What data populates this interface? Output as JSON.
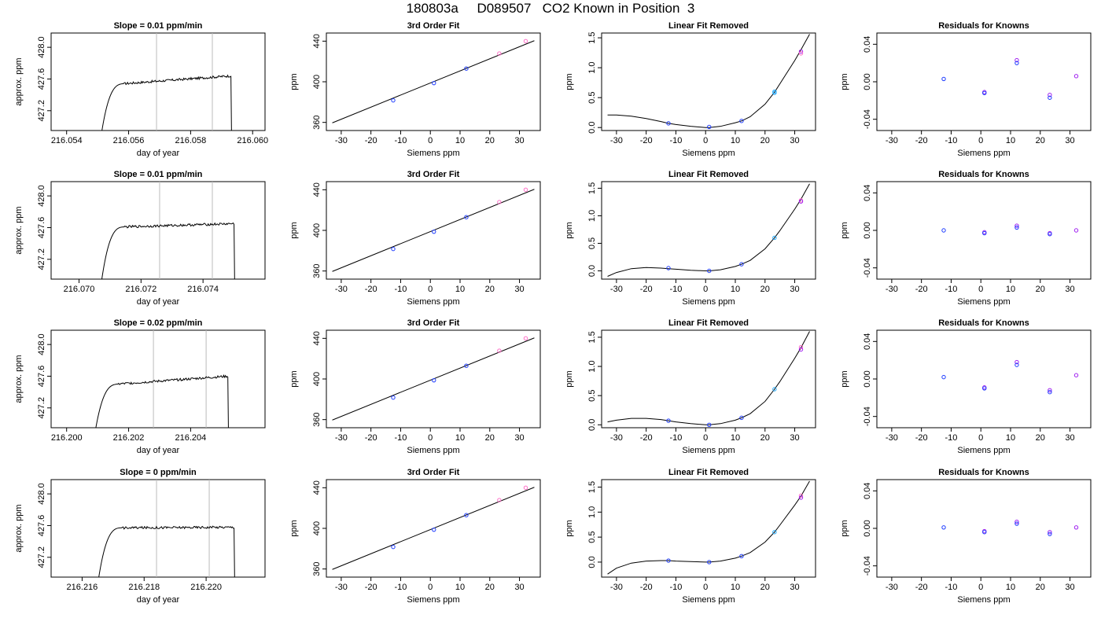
{
  "header": {
    "title": "180803a     D089507   CO2 Known in Position  3"
  },
  "labels": {
    "fit_title": "3rd Order Fit",
    "lin_title": "Linear Fit Removed",
    "res_title": "Residuals for Knowns",
    "siemens_xlabel": "Siemens ppm",
    "ppm_ylabel": "ppm",
    "time_xlabel": "day of year",
    "time_ylabel": "approx. ppm"
  },
  "colors": {
    "line": "#000000",
    "point_blue": "#1f3dff",
    "point_violet": "#a020f0",
    "point_pink": "#ff6ec7",
    "point_cyan": "#22aaff",
    "marker_gray": "#bbbbbb"
  },
  "chart_data": [
    {
      "row": 1,
      "type": "line",
      "title": "Slope =  0.01  ppm/min",
      "xlabel": "day of year",
      "ylabel": "approx. ppm",
      "xlim": [
        216.0535,
        216.0604
      ],
      "ylim": [
        426.95,
        428.18
      ],
      "xticks": [
        "216.054",
        "216.056",
        "216.058",
        "216.060"
      ],
      "xtick_values": [
        216.054,
        216.056,
        216.058,
        216.06
      ],
      "yticks": [
        "427.2",
        "427.6",
        "428.0"
      ],
      "ytick_values": [
        427.2,
        427.6,
        428.0
      ],
      "markers": [
        216.0569,
        216.0587
      ],
      "trace": {
        "x_start": 216.0551,
        "x_end": 216.0593,
        "level_start": 427.52,
        "level_end": 427.64
      }
    },
    {
      "row": 1,
      "type": "scatter",
      "title": "3rd Order Fit",
      "xlabel": "Siemens ppm",
      "ylabel": "ppm",
      "xlim": [
        -35,
        37
      ],
      "ylim": [
        352,
        448
      ],
      "xticks": [
        "-30",
        "-20",
        "-10",
        "0",
        "10",
        "20",
        "30"
      ],
      "xtick_values": [
        -30,
        -20,
        -10,
        0,
        10,
        20,
        30
      ],
      "yticks": [
        "360",
        "400",
        "440"
      ],
      "ytick_values": [
        360,
        400,
        440
      ],
      "line": {
        "x0": -33,
        "x1": 35,
        "y_at_zero": 398.8,
        "slope": 1.19
      },
      "points": [
        {
          "x": -12.5,
          "y": 381.7
        },
        {
          "x": 1.2,
          "y": 398.7
        },
        {
          "x": 12.1,
          "y": 413.0
        },
        {
          "x": 23.2,
          "y": 427.8
        },
        {
          "x": 32.1,
          "y": 440.0
        }
      ]
    },
    {
      "row": 1,
      "type": "scatter",
      "title": "Linear Fit Removed",
      "xlabel": "Siemens ppm",
      "ylabel": "ppm",
      "xlim": [
        -35,
        37
      ],
      "ylim": [
        -0.05,
        1.58
      ],
      "xticks": [
        "-30",
        "-20",
        "-10",
        "0",
        "10",
        "20",
        "30"
      ],
      "xtick_values": [
        -30,
        -20,
        -10,
        0,
        10,
        20,
        30
      ],
      "yticks": [
        "0.0",
        "0.5",
        "1.0",
        "1.5"
      ],
      "ytick_values": [
        0.0,
        0.5,
        1.0,
        1.5
      ],
      "curve": {
        "x": [
          -33,
          -30,
          -25,
          -20,
          -15,
          -12.5,
          -10,
          -5,
          0,
          1.2,
          5,
          10,
          12.1,
          15,
          20,
          23.2,
          25,
          30,
          32.1,
          35
        ],
        "y": [
          0.21,
          0.21,
          0.19,
          0.15,
          0.1,
          0.07,
          0.05,
          0.02,
          0.0,
          0.0,
          0.02,
          0.08,
          0.11,
          0.18,
          0.39,
          0.59,
          0.73,
          1.12,
          1.3,
          1.56
        ]
      },
      "points": [
        {
          "x": -12.5,
          "y": 0.07
        },
        {
          "x": 1.2,
          "y": 0.01
        },
        {
          "x": 12.1,
          "y": 0.11
        },
        {
          "x": 23.2,
          "y": 0.6
        },
        {
          "x": 23.2,
          "y": 0.58
        },
        {
          "x": 32.1,
          "y": 1.27
        },
        {
          "x": 32.1,
          "y": 1.24
        }
      ]
    },
    {
      "row": 1,
      "type": "scatter",
      "title": "Residuals for Knowns",
      "xlabel": "Siemens ppm",
      "ylabel": "ppm",
      "xlim": [
        -35,
        37
      ],
      "ylim": [
        -0.052,
        0.052
      ],
      "xticks": [
        "-30",
        "-20",
        "-10",
        "0",
        "10",
        "20",
        "30"
      ],
      "xtick_values": [
        -30,
        -20,
        -10,
        0,
        10,
        20,
        30
      ],
      "yticks": [
        "-0.04",
        "0.00",
        "0.04"
      ],
      "ytick_values": [
        -0.04,
        0.0,
        0.04
      ],
      "points": [
        {
          "x": -12.5,
          "y": 0.003
        },
        {
          "x": 1.2,
          "y": -0.011
        },
        {
          "x": 1.2,
          "y": -0.012
        },
        {
          "x": 12.1,
          "y": 0.023
        },
        {
          "x": 12.1,
          "y": 0.02
        },
        {
          "x": 23.2,
          "y": -0.014
        },
        {
          "x": 23.2,
          "y": -0.017
        },
        {
          "x": 32.1,
          "y": 0.006
        }
      ]
    },
    {
      "row": 2,
      "type": "line",
      "title": "Slope =  0.01  ppm/min",
      "xlabel": "day of year",
      "ylabel": "approx. ppm",
      "xlim": [
        216.0691,
        216.076
      ],
      "ylim": [
        426.95,
        428.18
      ],
      "xticks": [
        "216.070",
        "216.072",
        "216.074"
      ],
      "xtick_values": [
        216.07,
        216.072,
        216.074
      ],
      "yticks": [
        "427.2",
        "427.6",
        "428.0"
      ],
      "ytick_values": [
        427.2,
        427.6,
        428.0
      ],
      "markers": [
        216.0726,
        216.0743
      ],
      "trace": {
        "x_start": 216.0707,
        "x_end": 216.075,
        "level_start": 427.6,
        "level_end": 427.65
      }
    },
    {
      "row": 2,
      "type": "scatter",
      "title": "3rd Order Fit",
      "xlabel": "Siemens ppm",
      "ylabel": "ppm",
      "xlim": [
        -35,
        37
      ],
      "ylim": [
        352,
        448
      ],
      "xticks": [
        "-30",
        "-20",
        "-10",
        "0",
        "10",
        "20",
        "30"
      ],
      "xtick_values": [
        -30,
        -20,
        -10,
        0,
        10,
        20,
        30
      ],
      "yticks": [
        "360",
        "400",
        "440"
      ],
      "ytick_values": [
        360,
        400,
        440
      ],
      "line": {
        "x0": -33,
        "x1": 35,
        "y_at_zero": 398.8,
        "slope": 1.19
      },
      "points": [
        {
          "x": -12.5,
          "y": 381.7
        },
        {
          "x": 1.2,
          "y": 398.7
        },
        {
          "x": 12.1,
          "y": 413.0
        },
        {
          "x": 23.2,
          "y": 427.8
        },
        {
          "x": 32.1,
          "y": 440.0
        }
      ]
    },
    {
      "row": 2,
      "type": "scatter",
      "title": "Linear Fit Removed",
      "xlabel": "Siemens ppm",
      "ylabel": "ppm",
      "xlim": [
        -35,
        37
      ],
      "ylim": [
        -0.15,
        1.62
      ],
      "xticks": [
        "-30",
        "-20",
        "-10",
        "0",
        "10",
        "20",
        "30"
      ],
      "xtick_values": [
        -30,
        -20,
        -10,
        0,
        10,
        20,
        30
      ],
      "yticks": [
        "0.0",
        "0.5",
        "1.0",
        "1.5"
      ],
      "ytick_values": [
        0.0,
        0.5,
        1.0,
        1.5
      ],
      "curve": {
        "x": [
          -33,
          -30,
          -25,
          -20,
          -15,
          -12.5,
          -10,
          -5,
          0,
          1.2,
          5,
          10,
          12.1,
          15,
          20,
          23.2,
          25,
          30,
          32.1,
          35
        ],
        "y": [
          -0.1,
          -0.03,
          0.04,
          0.06,
          0.05,
          0.04,
          0.03,
          0.01,
          0.0,
          0.0,
          0.02,
          0.08,
          0.12,
          0.19,
          0.4,
          0.6,
          0.73,
          1.12,
          1.3,
          1.58
        ]
      },
      "points": [
        {
          "x": -12.5,
          "y": 0.05
        },
        {
          "x": 1.2,
          "y": 0.0
        },
        {
          "x": 12.1,
          "y": 0.12
        },
        {
          "x": 23.2,
          "y": 0.6
        },
        {
          "x": 32.1,
          "y": 1.28
        },
        {
          "x": 32.1,
          "y": 1.26
        }
      ]
    },
    {
      "row": 2,
      "type": "scatter",
      "title": "Residuals for Knowns",
      "xlabel": "Siemens ppm",
      "ylabel": "ppm",
      "xlim": [
        -35,
        37
      ],
      "ylim": [
        -0.052,
        0.052
      ],
      "xticks": [
        "-30",
        "-20",
        "-10",
        "0",
        "10",
        "20",
        "30"
      ],
      "xtick_values": [
        -30,
        -20,
        -10,
        0,
        10,
        20,
        30
      ],
      "yticks": [
        "-0.04",
        "0.00",
        "0.04"
      ],
      "ytick_values": [
        -0.04,
        0.0,
        0.04
      ],
      "points": [
        {
          "x": -12.5,
          "y": 0.0
        },
        {
          "x": 1.2,
          "y": -0.002
        },
        {
          "x": 1.2,
          "y": -0.003
        },
        {
          "x": 12.1,
          "y": 0.005
        },
        {
          "x": 12.1,
          "y": 0.003
        },
        {
          "x": 23.2,
          "y": -0.003
        },
        {
          "x": 23.2,
          "y": -0.004
        },
        {
          "x": 32.1,
          "y": 0.0
        }
      ]
    },
    {
      "row": 3,
      "type": "line",
      "title": "Slope =  0.02  ppm/min",
      "xlabel": "day of year",
      "ylabel": "approx. ppm",
      "xlim": [
        216.1995,
        216.2064
      ],
      "ylim": [
        426.95,
        428.18
      ],
      "xticks": [
        "216.200",
        "216.202",
        "216.204"
      ],
      "xtick_values": [
        216.2,
        216.202,
        216.204
      ],
      "yticks": [
        "427.2",
        "427.6",
        "428.0"
      ],
      "ytick_values": [
        427.2,
        427.6,
        428.0
      ],
      "markers": [
        216.2028,
        216.2045
      ],
      "trace": {
        "x_start": 216.2009,
        "x_end": 216.2052,
        "level_start": 427.48,
        "level_end": 427.6
      }
    },
    {
      "row": 3,
      "type": "scatter",
      "title": "3rd Order Fit",
      "xlabel": "Siemens ppm",
      "ylabel": "ppm",
      "xlim": [
        -35,
        37
      ],
      "ylim": [
        352,
        448
      ],
      "xticks": [
        "-30",
        "-20",
        "-10",
        "0",
        "10",
        "20",
        "30"
      ],
      "xtick_values": [
        -30,
        -20,
        -10,
        0,
        10,
        20,
        30
      ],
      "yticks": [
        "360",
        "400",
        "440"
      ],
      "ytick_values": [
        360,
        400,
        440
      ],
      "line": {
        "x0": -33,
        "x1": 35,
        "y_at_zero": 398.8,
        "slope": 1.19
      },
      "points": [
        {
          "x": -12.5,
          "y": 381.7
        },
        {
          "x": 1.2,
          "y": 398.7
        },
        {
          "x": 12.1,
          "y": 413.0
        },
        {
          "x": 23.2,
          "y": 427.8
        },
        {
          "x": 32.1,
          "y": 440.0
        }
      ]
    },
    {
      "row": 3,
      "type": "scatter",
      "title": "Linear Fit Removed",
      "xlabel": "Siemens ppm",
      "ylabel": "ppm",
      "xlim": [
        -35,
        37
      ],
      "ylim": [
        -0.05,
        1.62
      ],
      "xticks": [
        "-30",
        "-20",
        "-10",
        "0",
        "10",
        "20",
        "30"
      ],
      "xtick_values": [
        -30,
        -20,
        -10,
        0,
        10,
        20,
        30
      ],
      "yticks": [
        "0.0",
        "0.5",
        "1.0",
        "1.5"
      ],
      "ytick_values": [
        0.0,
        0.5,
        1.0,
        1.5
      ],
      "curve": {
        "x": [
          -33,
          -30,
          -25,
          -20,
          -15,
          -12.5,
          -10,
          -5,
          0,
          1.2,
          5,
          10,
          12.1,
          15,
          20,
          23.2,
          25,
          30,
          32.1,
          35
        ],
        "y": [
          0.05,
          0.08,
          0.11,
          0.11,
          0.09,
          0.07,
          0.05,
          0.02,
          0.0,
          0.0,
          0.02,
          0.08,
          0.12,
          0.19,
          0.4,
          0.61,
          0.74,
          1.14,
          1.32,
          1.6
        ]
      },
      "points": [
        {
          "x": -12.5,
          "y": 0.07
        },
        {
          "x": 1.2,
          "y": 0.0
        },
        {
          "x": 12.1,
          "y": 0.12
        },
        {
          "x": 23.2,
          "y": 0.61
        },
        {
          "x": 32.1,
          "y": 1.33
        },
        {
          "x": 32.1,
          "y": 1.29
        }
      ]
    },
    {
      "row": 3,
      "type": "scatter",
      "title": "Residuals for Knowns",
      "xlabel": "Siemens ppm",
      "ylabel": "ppm",
      "xlim": [
        -35,
        37
      ],
      "ylim": [
        -0.052,
        0.052
      ],
      "xticks": [
        "-30",
        "-20",
        "-10",
        "0",
        "10",
        "20",
        "30"
      ],
      "xtick_values": [
        -30,
        -20,
        -10,
        0,
        10,
        20,
        30
      ],
      "yticks": [
        "-0.04",
        "0.00",
        "0.04"
      ],
      "ytick_values": [
        -0.04,
        0.0,
        0.04
      ],
      "points": [
        {
          "x": -12.5,
          "y": 0.002
        },
        {
          "x": 1.2,
          "y": -0.009
        },
        {
          "x": 1.2,
          "y": -0.01
        },
        {
          "x": 12.1,
          "y": 0.018
        },
        {
          "x": 12.1,
          "y": 0.015
        },
        {
          "x": 23.2,
          "y": -0.012
        },
        {
          "x": 23.2,
          "y": -0.014
        },
        {
          "x": 32.1,
          "y": 0.004
        }
      ]
    },
    {
      "row": 4,
      "type": "line",
      "title": "Slope =  0  ppm/min",
      "xlabel": "day of year",
      "ylabel": "approx. ppm",
      "xlim": [
        216.215,
        216.2219
      ],
      "ylim": [
        426.95,
        428.18
      ],
      "xticks": [
        "216.216",
        "216.218",
        "216.220"
      ],
      "xtick_values": [
        216.216,
        216.218,
        216.22
      ],
      "yticks": [
        "427.2",
        "427.6",
        "428.0"
      ],
      "ytick_values": [
        427.2,
        427.6,
        428.0
      ],
      "markers": [
        216.2184,
        216.2201
      ],
      "trace": {
        "x_start": 216.2165,
        "x_end": 216.2209,
        "level_start": 427.57,
        "level_end": 427.58
      }
    },
    {
      "row": 4,
      "type": "scatter",
      "title": "3rd Order Fit",
      "xlabel": "Siemens ppm",
      "ylabel": "ppm",
      "xlim": [
        -35,
        37
      ],
      "ylim": [
        352,
        448
      ],
      "xticks": [
        "-30",
        "-20",
        "-10",
        "0",
        "10",
        "20",
        "30"
      ],
      "xtick_values": [
        -30,
        -20,
        -10,
        0,
        10,
        20,
        30
      ],
      "yticks": [
        "360",
        "400",
        "440"
      ],
      "ytick_values": [
        360,
        400,
        440
      ],
      "line": {
        "x0": -33,
        "x1": 35,
        "y_at_zero": 398.8,
        "slope": 1.19
      },
      "points": [
        {
          "x": -12.5,
          "y": 381.7
        },
        {
          "x": 1.2,
          "y": 398.7
        },
        {
          "x": 12.1,
          "y": 413.0
        },
        {
          "x": 23.2,
          "y": 427.8
        },
        {
          "x": 32.1,
          "y": 440.0
        }
      ]
    },
    {
      "row": 4,
      "type": "scatter",
      "title": "Linear Fit Removed",
      "xlabel": "Siemens ppm",
      "ylabel": "ppm",
      "xlim": [
        -35,
        37
      ],
      "ylim": [
        -0.3,
        1.65
      ],
      "xticks": [
        "-30",
        "-20",
        "-10",
        "0",
        "10",
        "20",
        "30"
      ],
      "xtick_values": [
        -30,
        -20,
        -10,
        0,
        10,
        20,
        30
      ],
      "yticks": [
        "0.0",
        "0.5",
        "1.0",
        "1.5"
      ],
      "ytick_values": [
        0.0,
        0.5,
        1.0,
        1.5
      ],
      "curve": {
        "x": [
          -33,
          -30,
          -25,
          -20,
          -15,
          -12.5,
          -10,
          -5,
          0,
          1.2,
          5,
          10,
          12.1,
          15,
          20,
          23.2,
          25,
          30,
          32.1,
          35
        ],
        "y": [
          -0.24,
          -0.12,
          -0.02,
          0.02,
          0.03,
          0.03,
          0.02,
          0.01,
          0.0,
          0.0,
          0.02,
          0.08,
          0.12,
          0.19,
          0.4,
          0.6,
          0.74,
          1.14,
          1.32,
          1.62
        ]
      },
      "points": [
        {
          "x": -12.5,
          "y": 0.03
        },
        {
          "x": 1.2,
          "y": 0.0
        },
        {
          "x": 12.1,
          "y": 0.12
        },
        {
          "x": 23.2,
          "y": 0.6
        },
        {
          "x": 32.1,
          "y": 1.33
        },
        {
          "x": 32.1,
          "y": 1.29
        }
      ]
    },
    {
      "row": 4,
      "type": "scatter",
      "title": "Residuals for Knowns",
      "xlabel": "Siemens ppm",
      "ylabel": "ppm",
      "xlim": [
        -35,
        37
      ],
      "ylim": [
        -0.052,
        0.052
      ],
      "xticks": [
        "-30",
        "-20",
        "-10",
        "0",
        "10",
        "20",
        "30"
      ],
      "xtick_values": [
        -30,
        -20,
        -10,
        0,
        10,
        20,
        30
      ],
      "yticks": [
        "-0.04",
        "0.00",
        "0.04"
      ],
      "ytick_values": [
        -0.04,
        0.0,
        0.04
      ],
      "points": [
        {
          "x": -12.5,
          "y": 0.001
        },
        {
          "x": 1.2,
          "y": -0.003
        },
        {
          "x": 1.2,
          "y": -0.004
        },
        {
          "x": 12.1,
          "y": 0.007
        },
        {
          "x": 12.1,
          "y": 0.005
        },
        {
          "x": 23.2,
          "y": -0.004
        },
        {
          "x": 23.2,
          "y": -0.006
        },
        {
          "x": 32.1,
          "y": 0.001
        }
      ]
    }
  ]
}
